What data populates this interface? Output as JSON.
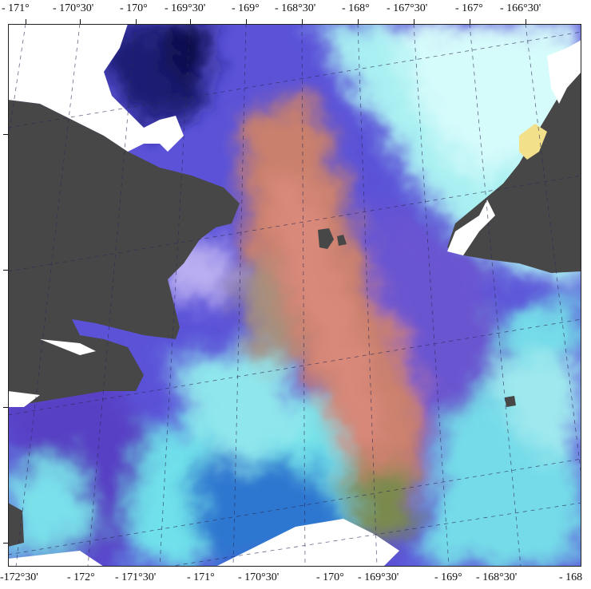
{
  "map": {
    "top_axis_labels": [
      "- 171°",
      "- 170°30'",
      "- 170°",
      "- 169°30'",
      "- 169°",
      "- 168°30'",
      "- 168°",
      "- 167°30'",
      "- 167°",
      "- 166°30'"
    ],
    "bottom_axis_labels": [
      "-172°30'",
      "- 172°",
      "- 171°30'",
      "- 171°",
      "- 170°30'",
      "- 170°",
      "- 169°30'",
      "- 169°",
      "- 168°30'",
      "- 168"
    ],
    "colors": {
      "land": "#474747",
      "cloud_mask": "#ffffff",
      "deep_blue": "#5a4fd6",
      "violet": "#6a4fc8",
      "cyan": "#6fe3ea",
      "pale_cyan": "#bff6f6",
      "orange_bloom": "#c9826e",
      "dark_navy": "#1d1a6b",
      "yellow_patch": "#f3e08a",
      "grid": "#2a2a55"
    },
    "layers": [
      "ocean-color-composite",
      "land-mask",
      "cloud-mask",
      "graticule"
    ]
  }
}
